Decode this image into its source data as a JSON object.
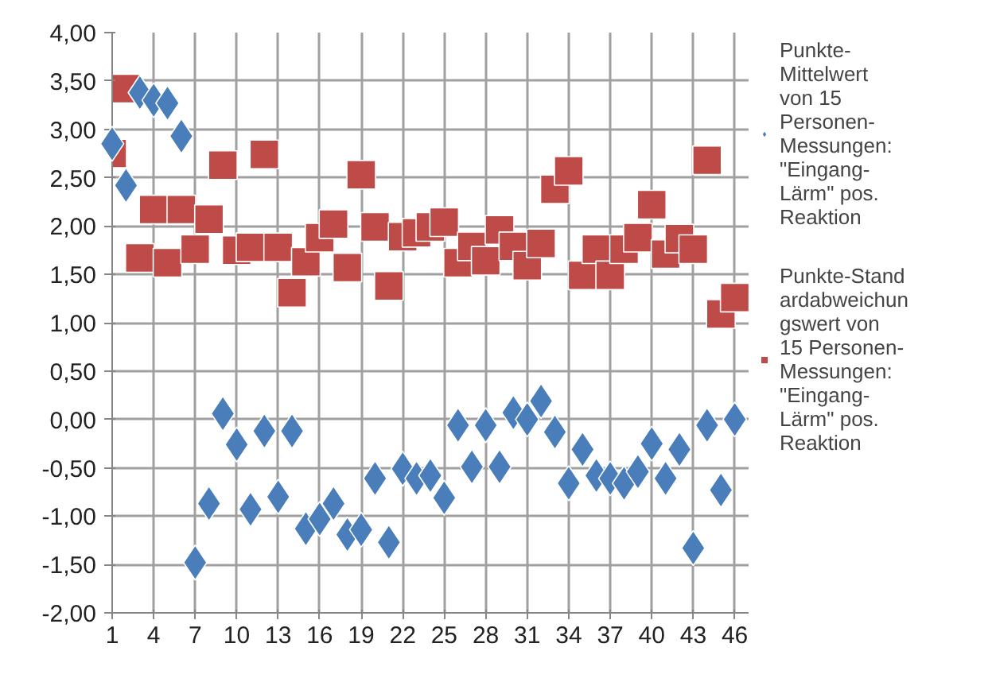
{
  "chart_data": {
    "type": "scatter",
    "x": [
      1,
      2,
      3,
      4,
      5,
      6,
      7,
      8,
      9,
      10,
      11,
      12,
      13,
      14,
      15,
      16,
      17,
      18,
      19,
      20,
      21,
      22,
      23,
      24,
      25,
      26,
      27,
      28,
      29,
      30,
      31,
      32,
      33,
      34,
      35,
      36,
      37,
      38,
      39,
      40,
      41,
      42,
      43,
      44,
      45,
      46
    ],
    "series": [
      {
        "name": "Punkte-Mittelwert von 15 Personen-Messungen: \"Eingang-Lärm\" pos. Reaktion",
        "color": "#4a7ebb",
        "marker": "diamond",
        "values": [
          2.85,
          2.42,
          3.38,
          3.3,
          3.27,
          2.93,
          -1.48,
          -0.87,
          0.06,
          -0.26,
          -0.93,
          -0.12,
          -0.8,
          -0.12,
          -1.13,
          -1.03,
          -0.87,
          -1.19,
          -1.14,
          -0.61,
          -1.27,
          -0.51,
          -0.61,
          -0.58,
          -0.81,
          -0.06,
          -0.49,
          -0.06,
          -0.49,
          0.07,
          0.0,
          0.19,
          -0.13,
          -0.66,
          -0.31,
          -0.58,
          -0.61,
          -0.66,
          -0.54,
          -0.25,
          -0.61,
          -0.31,
          -1.33,
          -0.06,
          -0.73,
          0.0
        ]
      },
      {
        "name": "Punkte-Standardabweichungswert von 15 Personen-Messungen: \"Eingang-Lärm\" pos. Reaktion",
        "color": "#be4b48",
        "marker": "square",
        "values": [
          2.75,
          3.42,
          1.67,
          2.17,
          1.62,
          2.17,
          1.76,
          2.07,
          2.63,
          1.75,
          1.78,
          2.74,
          1.78,
          1.31,
          1.63,
          1.88,
          2.02,
          1.57,
          2.53,
          1.99,
          1.38,
          1.89,
          1.93,
          1.99,
          2.04,
          1.62,
          1.79,
          1.64,
          1.96,
          1.79,
          1.59,
          1.82,
          2.38,
          2.57,
          1.49,
          1.76,
          1.49,
          1.76,
          1.88,
          2.22,
          1.71,
          1.87,
          1.76,
          2.68,
          1.09,
          1.26
        ]
      }
    ],
    "xlim": [
      1,
      47
    ],
    "xticks": [
      1,
      4,
      7,
      10,
      13,
      16,
      19,
      22,
      25,
      28,
      31,
      34,
      37,
      40,
      43,
      46
    ],
    "ylim": [
      -2,
      4
    ],
    "yticks": [
      {
        "value": -2,
        "label": "-2,00"
      },
      {
        "value": -1.5,
        "label": "-1,50"
      },
      {
        "value": -1,
        "label": "-1,00"
      },
      {
        "value": -0.5,
        "label": "-0,50"
      },
      {
        "value": 0,
        "label": "0,00"
      },
      {
        "value": 0.5,
        "label": "0,50"
      },
      {
        "value": 1,
        "label": "1,00"
      },
      {
        "value": 1.5,
        "label": "1,50"
      },
      {
        "value": 2,
        "label": "2,00"
      },
      {
        "value": 2.5,
        "label": "2,50"
      },
      {
        "value": 3,
        "label": "3,00"
      },
      {
        "value": 3.5,
        "label": "3,50"
      },
      {
        "value": 4,
        "label": "4,00"
      }
    ],
    "grid": true,
    "legend": "right"
  }
}
